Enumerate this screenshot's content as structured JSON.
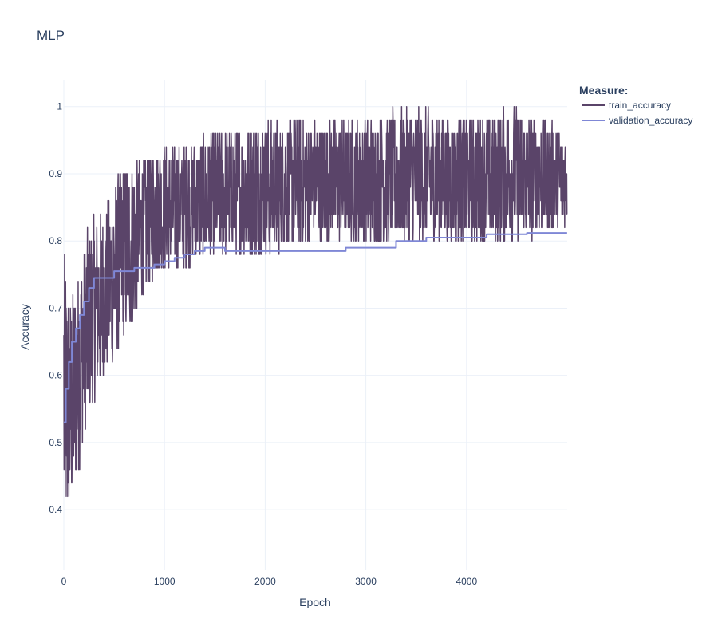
{
  "chart_data": {
    "type": "line",
    "title": "MLP",
    "xlabel": "Epoch",
    "ylabel": "Accuracy",
    "xlim": [
      0,
      5000
    ],
    "ylim": [
      0.31,
      1.04
    ],
    "xticks": [
      0,
      1000,
      2000,
      3000,
      4000
    ],
    "yticks": [
      0.4,
      0.5,
      0.6,
      0.7,
      0.8,
      0.9,
      1
    ],
    "grid": true,
    "legend": {
      "title": "Measure:",
      "position": "top-right outside",
      "entries": [
        "train_accuracy",
        "validation_accuracy"
      ]
    },
    "series": [
      {
        "name": "train_accuracy",
        "color": "#5a4469",
        "style": "noisy",
        "envelope": {
          "x": [
            0,
            50,
            100,
            200,
            300,
            400,
            500,
            600,
            700,
            800,
            900,
            1000,
            1200,
            1500,
            2000,
            2500,
            3000,
            3500,
            4000,
            4500,
            4999
          ],
          "low": [
            0.34,
            0.38,
            0.42,
            0.5,
            0.56,
            0.6,
            0.62,
            0.66,
            0.68,
            0.72,
            0.74,
            0.76,
            0.76,
            0.78,
            0.78,
            0.8,
            0.8,
            0.8,
            0.8,
            0.8,
            0.82
          ],
          "high": [
            0.8,
            0.72,
            0.72,
            0.8,
            0.84,
            0.84,
            0.88,
            0.92,
            0.92,
            0.92,
            0.94,
            0.94,
            0.94,
            0.96,
            0.98,
            0.98,
            0.98,
            1.0,
            0.98,
            1.0,
            0.96
          ]
        }
      },
      {
        "name": "validation_accuracy",
        "color": "#7f87d6",
        "style": "step",
        "x": [
          0,
          20,
          50,
          80,
          120,
          160,
          200,
          250,
          300,
          400,
          500,
          600,
          700,
          800,
          900,
          1000,
          1100,
          1200,
          1300,
          1400,
          1600,
          1800,
          2000,
          2200,
          2500,
          2800,
          3000,
          3200,
          3300,
          3400,
          3600,
          3800,
          4000,
          4200,
          4400,
          4600,
          4800,
          4999
        ],
        "y": [
          0.53,
          0.58,
          0.62,
          0.65,
          0.67,
          0.69,
          0.71,
          0.73,
          0.745,
          0.745,
          0.755,
          0.755,
          0.76,
          0.76,
          0.765,
          0.77,
          0.775,
          0.78,
          0.785,
          0.79,
          0.785,
          0.785,
          0.785,
          0.785,
          0.785,
          0.79,
          0.79,
          0.79,
          0.8,
          0.8,
          0.805,
          0.805,
          0.805,
          0.81,
          0.81,
          0.812,
          0.812,
          0.812
        ]
      }
    ]
  }
}
